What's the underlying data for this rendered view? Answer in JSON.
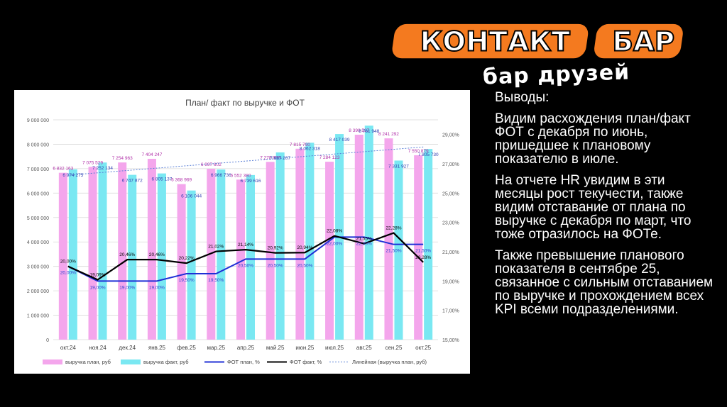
{
  "logo": {
    "brand_left": "КОНТАКТ",
    "brand_right": "БАР",
    "tagline": "бар друзей",
    "colors": {
      "orange": "#f47a1f",
      "white": "#ffffff",
      "black": "#000000"
    }
  },
  "text_panel": {
    "paragraphs": [
      "Выводы:",
      "Видим расхождения план/факт ФОТ с декабря по июнь, пришедшее к плановому показателю в июле.",
      "На отчете HR увидим в эти месяцы рост текучести, также видим отставание от плана по выручке с декабря по март, что тоже отразилось на ФОТе.",
      "Также превышение планового показателя в сентябре 25, связанное с сильным отставанием по выручке и прохождением всех KPI всеми подразделениями."
    ]
  },
  "chart_data": {
    "type": "bar",
    "title": "План/ факт по выручке и ФОТ",
    "categories": [
      "окт.24",
      "ноя.24",
      "дек.24",
      "янв.25",
      "фев.25",
      "мар.25",
      "апр.25",
      "май.25",
      "июн.25",
      "июл.25",
      "авг.25",
      "сен.25",
      "окт.25"
    ],
    "ylim": [
      0,
      9000000
    ],
    "y_ticks": [
      "0",
      "1 000 000",
      "2 000 000",
      "3 000 000",
      "4 000 000",
      "5 000 000",
      "6 000 000",
      "7 000 000",
      "8 000 000",
      "9 000 000"
    ],
    "y2lim": [
      15,
      30
    ],
    "y2_ticks": [
      "15,00%",
      "17,00%",
      "19,00%",
      "21,00%",
      "23,00%",
      "25,00%",
      "27,00%",
      "29,00%"
    ],
    "grid": true,
    "legend_position": "bottom",
    "series": [
      {
        "name": "выручка план, руб",
        "kind": "bar",
        "color": "#f4a6ec",
        "values": [
          6832163,
          7075529,
          7254963,
          7404247,
          6368969,
          6997602,
          6552380,
          7278658,
          7815790,
          7284123,
          8390537,
          8241292,
          7550879
        ],
        "labels": [
          "6 832 163",
          "7 075 529",
          "7 254 963",
          "7 404 247",
          "6 368 969",
          "6 997 602",
          "6 552 380",
          "7 278 658",
          "7 815 790",
          "7 284 123",
          "8 390 537",
          "8 241 292",
          "7 550 879"
        ]
      },
      {
        "name": "выручка факт, руб",
        "kind": "bar",
        "color": "#7ae8f2",
        "values": [
          6974275,
          7252134,
          6747872,
          6805137,
          6106044,
          6966736,
          6739616,
          7667207,
          8062318,
          8417039,
          8761948,
          7331927,
          7805730
        ],
        "labels": [
          "6 974 275",
          "7 252 134",
          "6 747 872",
          "6 805 137",
          "6 106 044",
          "6 966 736",
          "6 739 616",
          "7 667 207",
          "8 062 318",
          "8 417 039",
          "8 761 948",
          "7 331 927",
          "7 805 730"
        ]
      },
      {
        "name": "ФОТ план, %",
        "kind": "line",
        "axis": "right",
        "color": "#1f2fd6",
        "values": [
          20.0,
          19.0,
          19.0,
          19.0,
          19.5,
          19.5,
          20.5,
          20.5,
          20.5,
          22.0,
          22.0,
          21.5,
          21.5
        ],
        "labels": [
          "20,00%",
          "19,00%",
          "19,00%",
          "19,00%",
          "19,50%",
          "19,50%",
          "20,50%",
          "20,50%",
          "20,50%",
          "22,00%",
          "22,00%",
          "21,50%",
          "21,50%"
        ]
      },
      {
        "name": "ФОТ факт, %",
        "kind": "line",
        "axis": "right",
        "color": "#000000",
        "values": [
          20.0,
          19.09,
          20.46,
          20.46,
          20.22,
          21.02,
          21.14,
          20.92,
          20.94,
          22.08,
          21.55,
          22.28,
          20.28
        ],
        "labels": [
          "20,00%",
          "19,09%",
          "20,46%",
          "20,46%",
          "20,22%",
          "21,02%",
          "21,14%",
          "20,92%",
          "20,94%",
          "22,08%",
          "21,55%",
          "22,28%",
          "20,28%"
        ]
      },
      {
        "name": "Линейная (выручка план, руб)",
        "kind": "trendline",
        "of": "выручка план, руб",
        "color": "#5a7fd6"
      }
    ]
  }
}
